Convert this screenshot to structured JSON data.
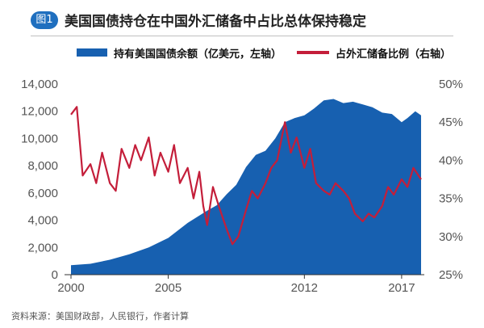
{
  "figure_label": "图1",
  "title": "美国国债持仓在中国外汇储备中占比总体保持稳定",
  "source": "资料来源：美国财政部，人民银行，作者计算",
  "colors": {
    "area": "#1760b0",
    "line": "#c41e3a",
    "badge": "#1f6fbf"
  },
  "chart_data": {
    "type": "area",
    "legend_position": "top",
    "grid": false,
    "x_ticks": [
      "2000",
      "2005",
      "2012",
      "2017"
    ],
    "y_left": {
      "ticks": [
        "0",
        "2,000",
        "4,000",
        "6,000",
        "8,000",
        "10,000",
        "12,000",
        "14,000"
      ],
      "range": [
        0,
        14000
      ]
    },
    "y_right": {
      "ticks": [
        "25%",
        "30%",
        "35%",
        "40%",
        "45%",
        "50%"
      ],
      "range": [
        25,
        50
      ]
    },
    "series": [
      {
        "name": "持有美国国债余额（亿美元，左轴）",
        "type": "area",
        "axis": "left",
        "x": [
          2000.0,
          2001.0,
          2002.0,
          2003.0,
          2004.0,
          2005.0,
          2006.0,
          2007.0,
          2007.5,
          2008.0,
          2008.5,
          2009.0,
          2009.5,
          2010.0,
          2010.5,
          2011.0,
          2011.5,
          2012.0,
          2012.5,
          2013.0,
          2013.5,
          2014.0,
          2014.5,
          2015.0,
          2015.5,
          2016.0,
          2016.5,
          2017.0,
          2017.3,
          2017.7,
          2018.0
        ],
        "y": [
          700,
          800,
          1100,
          1500,
          2000,
          2700,
          3800,
          4700,
          5100,
          5900,
          6600,
          7900,
          8800,
          9100,
          10000,
          11200,
          11500,
          11700,
          12200,
          12800,
          12900,
          12600,
          12700,
          12500,
          12300,
          11900,
          11800,
          11200,
          11500,
          12000,
          11700
        ]
      },
      {
        "name": "占外汇储备比例（右轴）",
        "type": "line",
        "axis": "right",
        "x": [
          2000.0,
          2000.3,
          2000.6,
          2001.0,
          2001.3,
          2001.6,
          2002.0,
          2002.3,
          2002.6,
          2003.0,
          2003.3,
          2003.6,
          2004.0,
          2004.3,
          2004.6,
          2005.0,
          2005.3,
          2005.6,
          2006.0,
          2006.3,
          2006.6,
          2006.8,
          2007.0,
          2007.3,
          2007.6,
          2008.0,
          2008.3,
          2008.6,
          2009.0,
          2009.3,
          2009.6,
          2010.0,
          2010.3,
          2010.6,
          2011.0,
          2011.3,
          2011.6,
          2012.0,
          2012.3,
          2012.6,
          2013.0,
          2013.3,
          2013.6,
          2014.0,
          2014.3,
          2014.6,
          2015.0,
          2015.3,
          2015.6,
          2016.0,
          2016.3,
          2016.6,
          2017.0,
          2017.3,
          2017.6,
          2018.0
        ],
        "y": [
          46,
          47,
          38,
          39.5,
          37,
          41,
          37,
          36,
          41.5,
          39,
          42,
          40,
          43,
          38,
          41,
          38.5,
          42,
          37,
          39,
          35,
          38.5,
          34,
          31.5,
          36.5,
          34,
          31,
          29,
          30,
          33.5,
          36,
          35,
          37,
          39,
          40,
          45,
          41,
          43,
          39,
          41.5,
          37,
          36,
          35.5,
          37,
          36,
          35,
          33,
          32,
          33,
          32.5,
          34,
          36.5,
          35.5,
          37.5,
          36.5,
          39,
          37.5
        ]
      }
    ]
  }
}
